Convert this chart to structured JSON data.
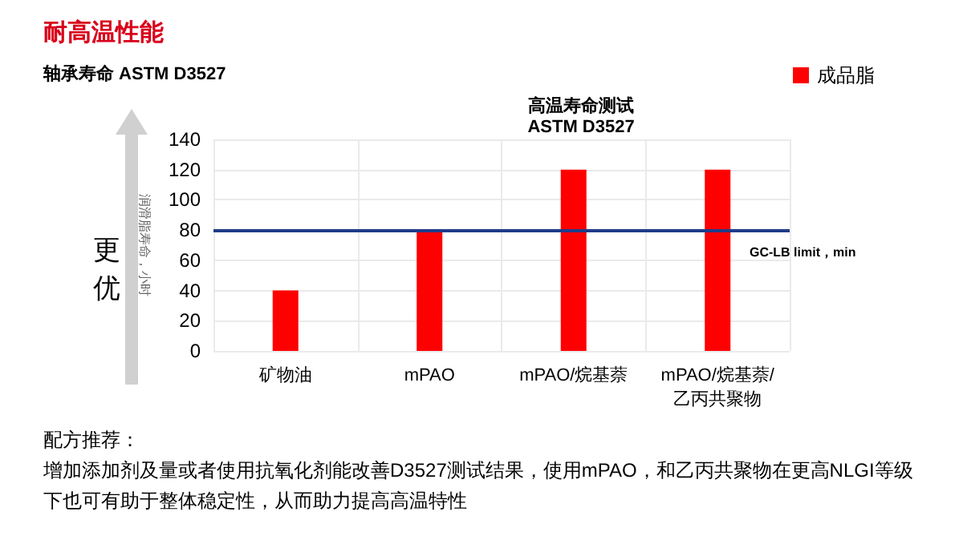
{
  "chart_data": {
    "type": "bar",
    "title": "耐高温性能",
    "subtitle": "轴承寿命 ASTM D3527",
    "ylabel": "润滑脂寿命，小时",
    "categories": [
      "矿物油",
      "mPAO",
      "mPAO/烷基萘",
      "mPAO/烷基萘/乙丙共聚物"
    ],
    "series": [
      {
        "name": "成品脂",
        "color": "#ff0000",
        "values": [
          40,
          80,
          120,
          120
        ]
      }
    ],
    "ylim": [
      0,
      140
    ],
    "yticks": [
      0,
      20,
      40,
      60,
      80,
      100,
      120,
      140
    ],
    "grid": true,
    "legend": "top right",
    "ref_lines": [
      {
        "axis": "y",
        "value": 80,
        "label": "GC-LB limit，min",
        "color": "#1f3c88"
      }
    ],
    "annotations": [
      "高温寿命测试\nASTM D3527",
      "更优",
      "配方推荐：",
      "增加添加剂及量或者使用抗氧化剂能改善D3527测试结果，使用mPAO，和乙丙共聚物在更高NLGI等级下也可有助于整体稳定性，从而助力提高高温特性"
    ]
  }
}
